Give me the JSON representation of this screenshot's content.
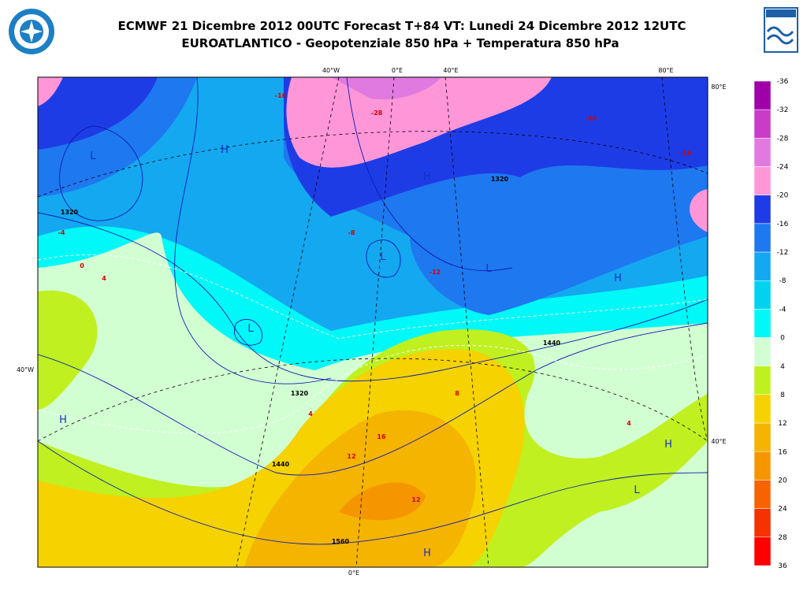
{
  "header": {
    "title_line1": "ECMWF 21 Dicembre 2012 00UTC Forecast T+84 VT: Lunedi 24 Dicembre 2012 12UTC",
    "title_line2": "EUROATLANTICO - Geopotenziale 850 hPa + Temperatura 850 hPa"
  },
  "map": {
    "graticule_labels": [
      "40°W",
      "0°E",
      "40°E",
      "80°E",
      "80°E",
      "40°W",
      "40°E",
      "0°E"
    ],
    "pressure_centers": [
      "H",
      "L",
      "L",
      "H",
      "L",
      "L",
      "H",
      "H",
      "L",
      "H",
      "H"
    ],
    "contour_labels": [
      "1320",
      "1320",
      "1440",
      "1440",
      "1560",
      "1320",
      "-4",
      "0",
      "4",
      "4",
      "8",
      "12",
      "16",
      "-16",
      "-28",
      "-16",
      "-8",
      "-12",
      "4",
      "12",
      "-16"
    ]
  },
  "colorbar": {
    "levels": [
      -36,
      -32,
      -28,
      -24,
      -20,
      -16,
      -12,
      -8,
      -4,
      0,
      4,
      8,
      12,
      16,
      20,
      24,
      28,
      36
    ],
    "colors": [
      "#a000a8",
      "#c83cc8",
      "#e07ae0",
      "#ff96d8",
      "#1e3ce6",
      "#1e78f0",
      "#14a8f0",
      "#00d2f0",
      "#00f8f8",
      "#d2ffd2",
      "#c0f020",
      "#f5d200",
      "#f5b400",
      "#f59600",
      "#f56400",
      "#f53200",
      "#ff0000"
    ]
  }
}
